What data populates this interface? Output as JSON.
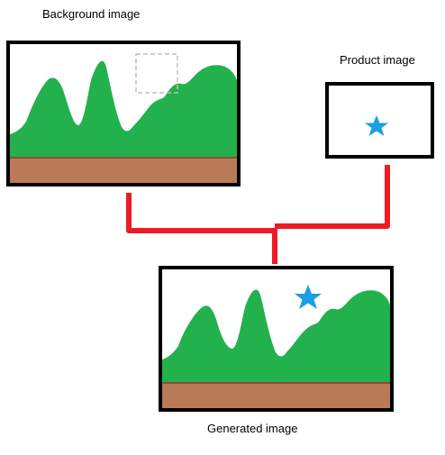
{
  "labels": {
    "background": "Background image",
    "product": "Product image",
    "generated": "Generated image"
  },
  "colors": {
    "frame": "#000000",
    "hills": "#22b14c",
    "ground": "#b97a57",
    "ground_line": "#8a4f3a",
    "star": "#1a9fe0",
    "connector": "#ed1c24",
    "placeholder": "#c0c0c0"
  }
}
